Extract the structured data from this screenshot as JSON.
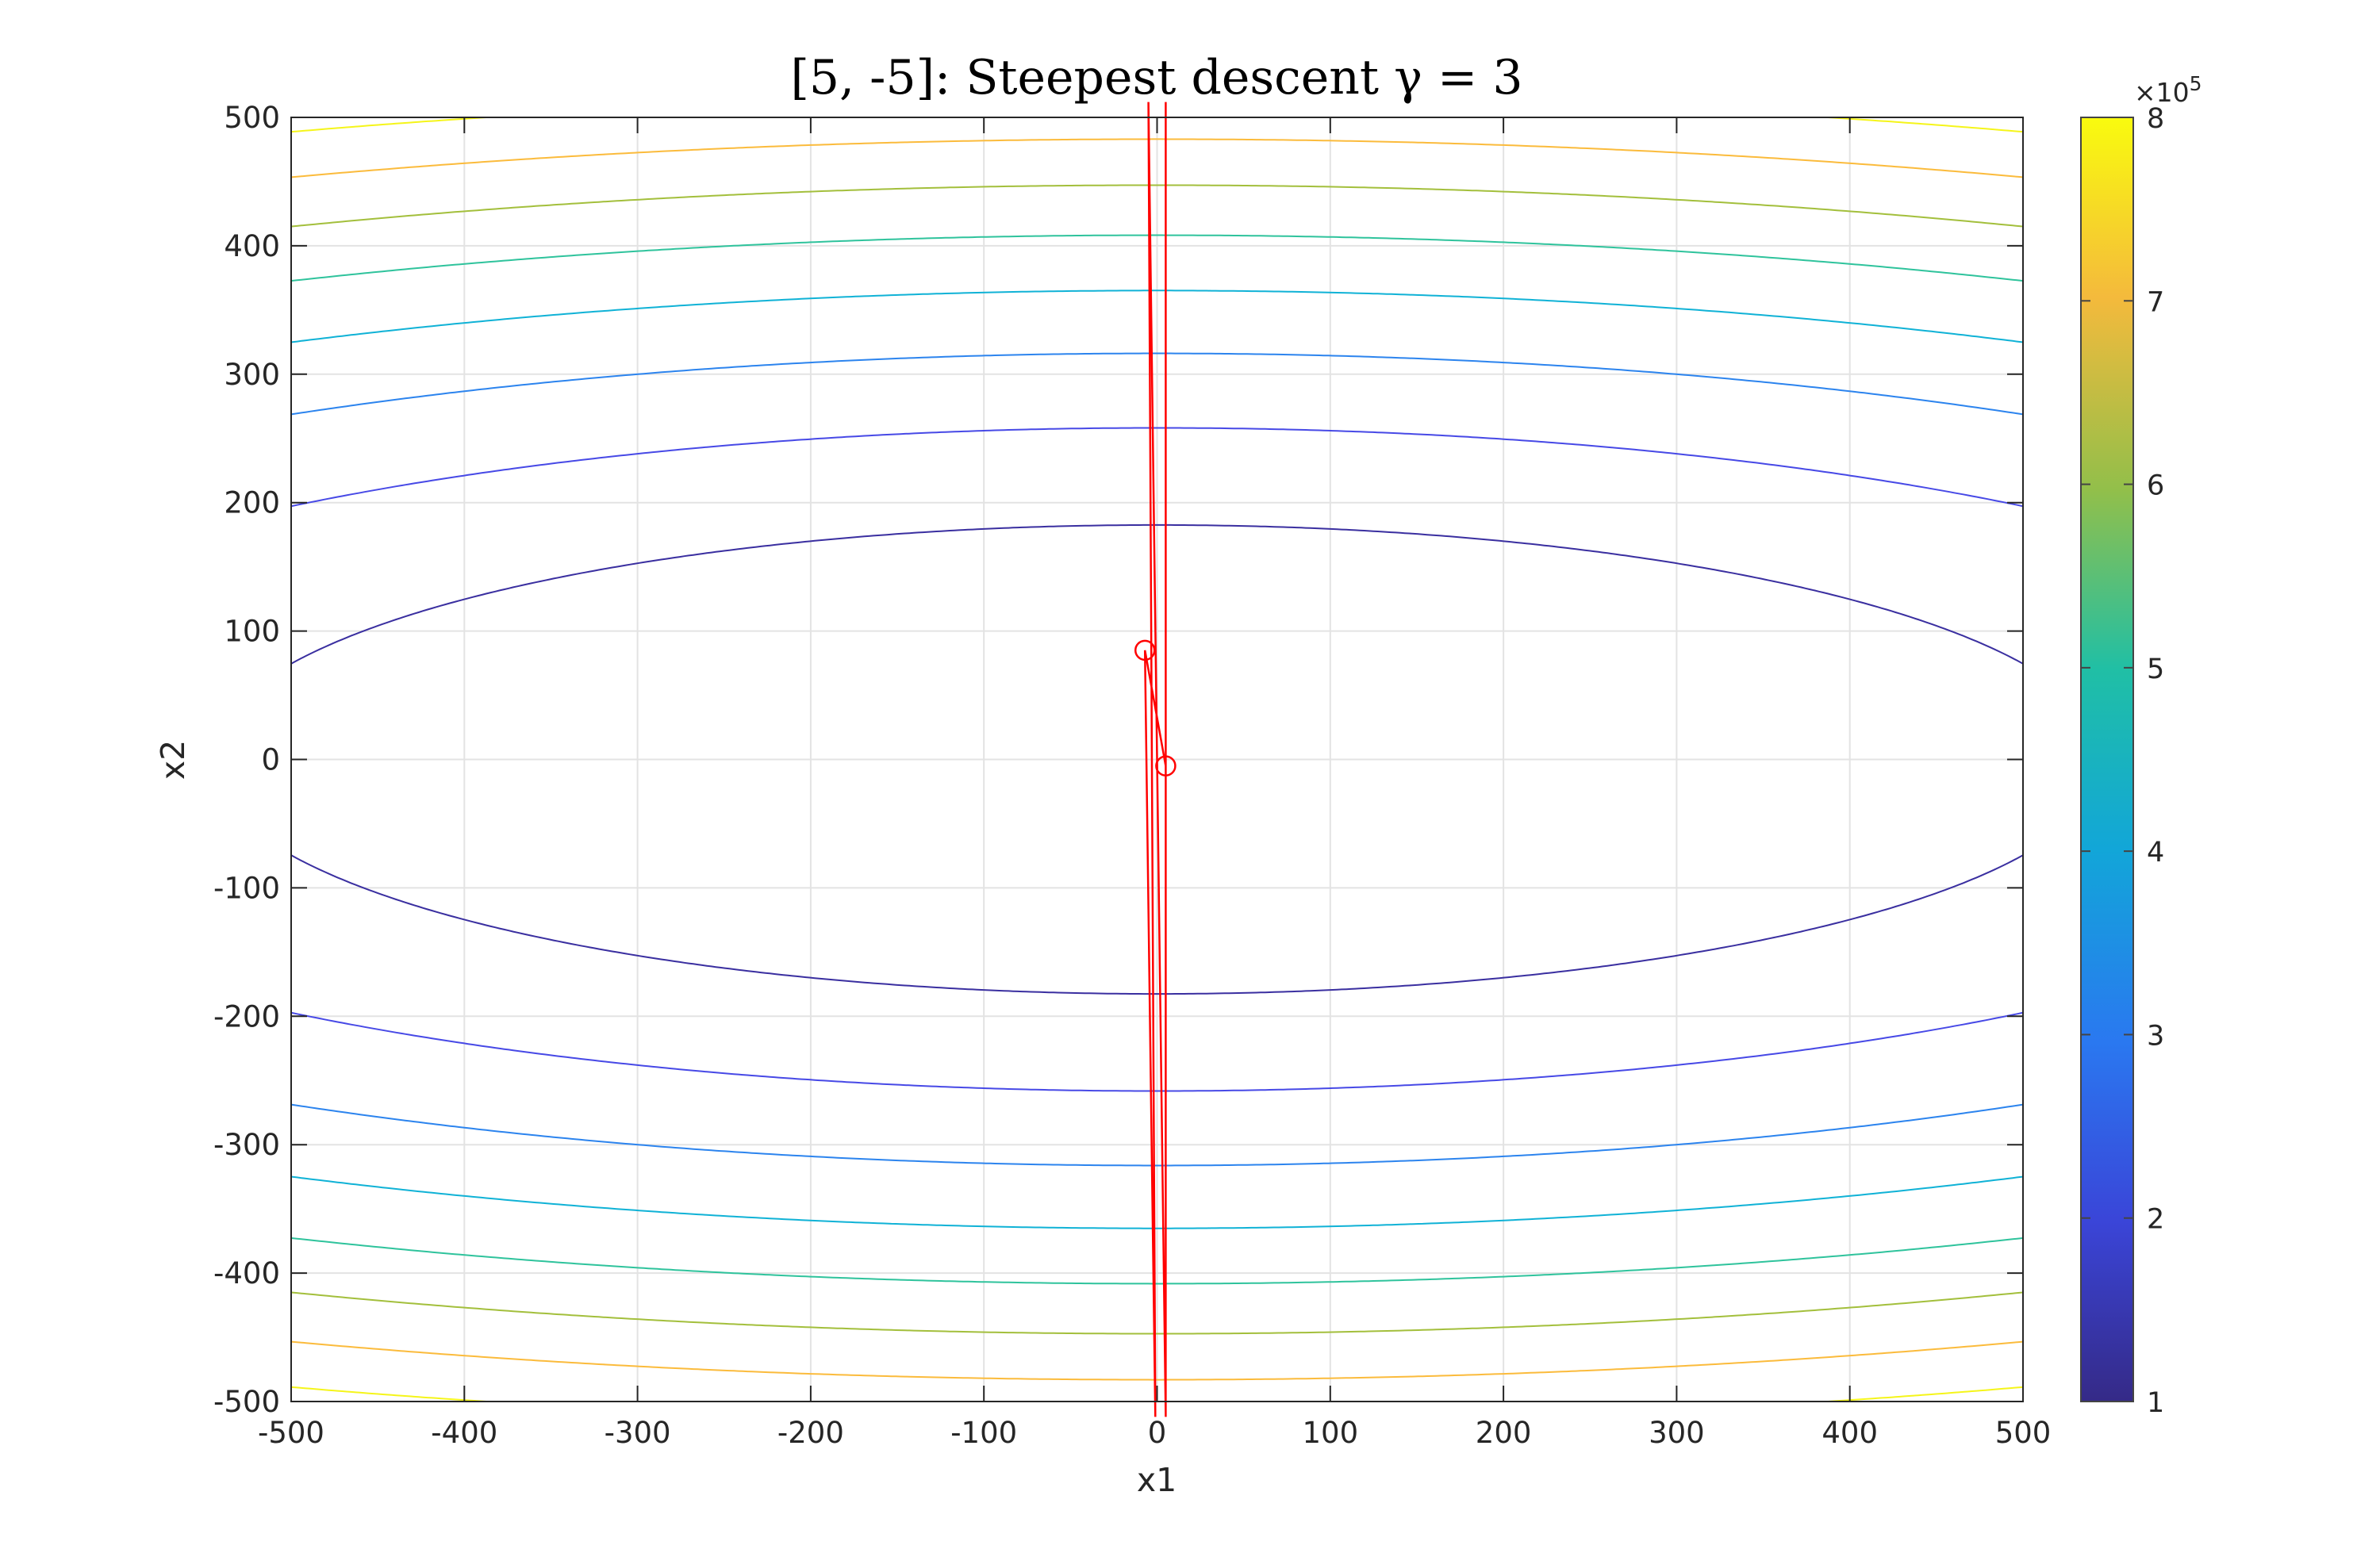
{
  "chart_data": {
    "type": "contour",
    "title": "[5, -5]: Steepest descent γ = 3",
    "xlabel": "x1",
    "ylabel": "x2",
    "xlim": [
      -500,
      500
    ],
    "ylim": [
      -500,
      500
    ],
    "xticks": [
      -500,
      -400,
      -300,
      -200,
      -100,
      0,
      100,
      200,
      300,
      400,
      500
    ],
    "yticks": [
      -500,
      -400,
      -300,
      -200,
      -100,
      0,
      100,
      200,
      300,
      400,
      500
    ],
    "grid": true,
    "function": "f(x1,x2) = x1^2/3 + 3*x2^2",
    "contour_levels": [
      100000,
      200000,
      300000,
      400000,
      500000,
      600000,
      700000,
      800000
    ],
    "level_colors": [
      "#3a2fa0",
      "#4749e6",
      "#2c84ee",
      "#10b2d6",
      "#2fc39c",
      "#a3bf3c",
      "#fbbb3c",
      "#f5f51a"
    ],
    "trajectory": {
      "color": "#ff0000",
      "points": [
        [
          5,
          -5
        ],
        [
          -7,
          85
        ],
        [
          -3,
          -600
        ],
        [
          -7,
          600
        ],
        [
          5,
          -600
        ],
        [
          5,
          600
        ]
      ],
      "markers": [
        [
          5,
          -5
        ],
        [
          -7,
          85
        ]
      ]
    },
    "colorbar": {
      "ticks": [
        "1",
        "2",
        "3",
        "4",
        "5",
        "6",
        "7",
        "8"
      ],
      "range": [
        1,
        8
      ],
      "exponent_label": "×10",
      "exponent": "5",
      "colormap": "parula"
    }
  }
}
